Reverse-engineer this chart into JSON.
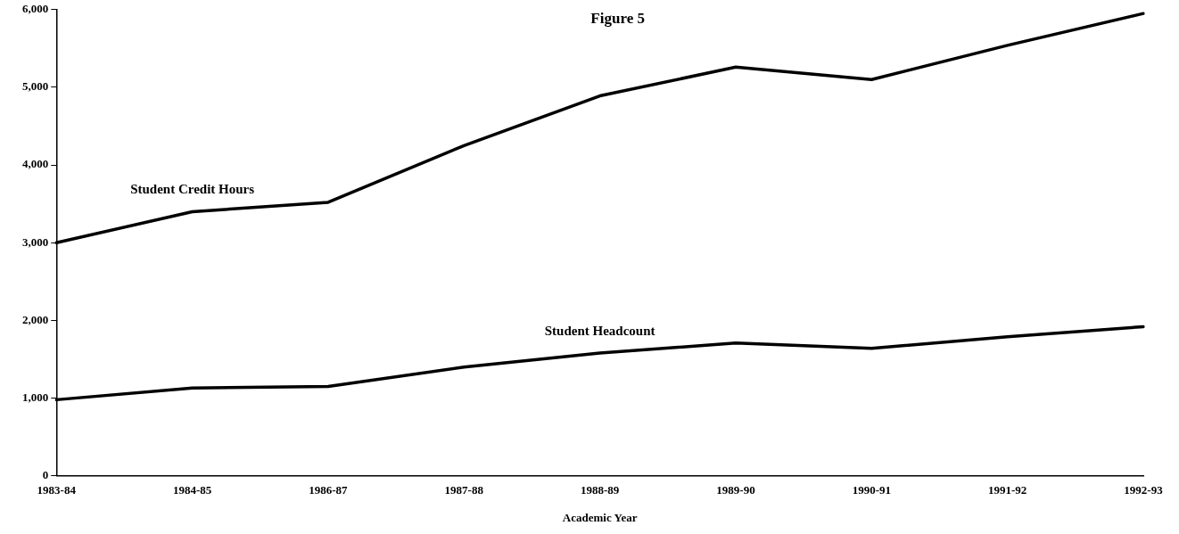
{
  "chart_data": {
    "type": "line",
    "title": "Figure 5",
    "xlabel": "Academic Year",
    "categories": [
      "1983-84",
      "1984-85",
      "1986-87",
      "1987-88",
      "1988-89",
      "1989-90",
      "1990-91",
      "1991-92",
      "1992-93"
    ],
    "series": [
      {
        "name": "Student Credit Hours",
        "color": "#000000",
        "values": [
          3000,
          3400,
          3520,
          4250,
          4890,
          5260,
          5100,
          5540,
          5950
        ]
      },
      {
        "name": "Student Headcount",
        "color": "#000000",
        "values": [
          980,
          1130,
          1150,
          1400,
          1580,
          1710,
          1640,
          1790,
          1920
        ]
      }
    ],
    "ylim": [
      0,
      6000
    ],
    "yticks": [
      {
        "value": 0,
        "label": "0"
      },
      {
        "value": 1000,
        "label": "1,000"
      },
      {
        "value": 2000,
        "label": "2,000"
      },
      {
        "value": 3000,
        "label": "3,000"
      },
      {
        "value": 4000,
        "label": "4,000"
      },
      {
        "value": 5000,
        "label": "5,000"
      },
      {
        "value": 6000,
        "label": "6,000"
      }
    ],
    "grid": false,
    "legend": false,
    "marker": "none",
    "line_style": "solid"
  }
}
